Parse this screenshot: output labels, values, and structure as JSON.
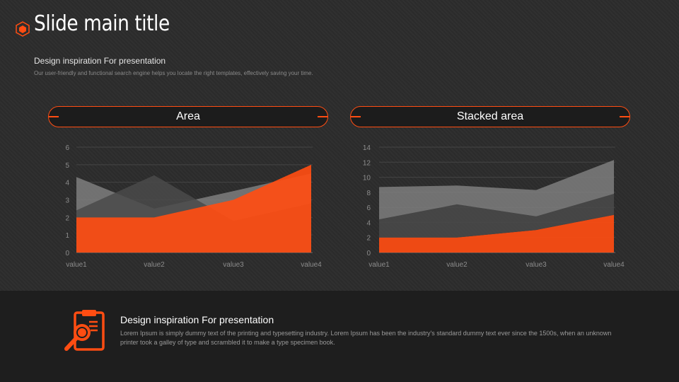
{
  "slide": {
    "title": "Slide main title",
    "subtitle": "Design inspiration For presentation",
    "description": "Our user-friendly and functional search engine helps you locate the right templates, effectively saving your time."
  },
  "colors": {
    "accent": "#ff4d12",
    "series_light": "#7e7e7e",
    "series_dark": "#4a4a4a"
  },
  "footer": {
    "title": "Design inspiration For presentation",
    "text": "Lorem Ipsum is simply dummy text of the printing and typesetting industry. Lorem Ipsum has been the industry's standard dummy text ever since the 1500s, when an unknown printer took a galley of type and scrambled it to make a type specimen book.",
    "icon": "clipboard-search-icon"
  },
  "chart_data": [
    {
      "type": "area",
      "title": "Area",
      "categories": [
        "value1",
        "value2",
        "value3",
        "value4"
      ],
      "ylim": [
        0,
        6
      ],
      "yticks": [
        0,
        1,
        2,
        3,
        4,
        5,
        6
      ],
      "grid": true,
      "series": [
        {
          "values": [
            4.3,
            2.5,
            3.5,
            4.5
          ]
        },
        {
          "values": [
            2.4,
            4.4,
            1.8,
            2.8
          ]
        },
        {
          "values": [
            2.0,
            2.0,
            3.0,
            5.0
          ]
        }
      ]
    },
    {
      "type": "area",
      "stacked": true,
      "title": "Stacked area",
      "categories": [
        "value1",
        "value2",
        "value3",
        "value4"
      ],
      "ylim": [
        0,
        14
      ],
      "yticks": [
        0,
        2,
        4,
        6,
        8,
        10,
        12,
        14
      ],
      "grid": true,
      "series": [
        {
          "values": [
            4.3,
            2.5,
            3.5,
            4.5
          ]
        },
        {
          "values": [
            2.4,
            4.4,
            1.8,
            2.8
          ]
        },
        {
          "values": [
            2.0,
            2.0,
            3.0,
            5.0
          ]
        }
      ]
    }
  ]
}
